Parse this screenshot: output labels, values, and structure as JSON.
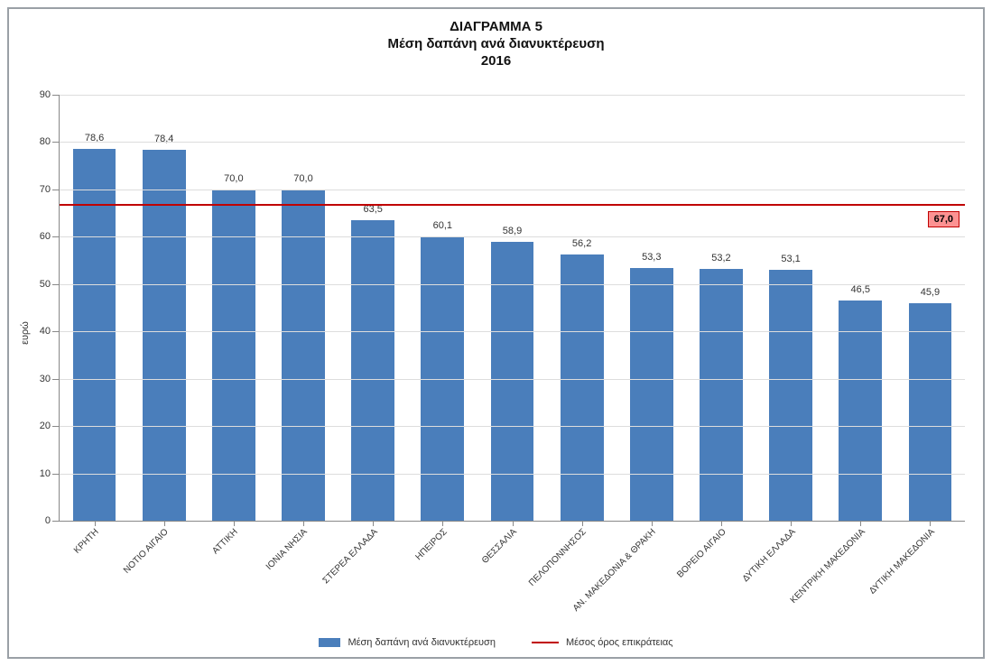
{
  "chart": {
    "type": "bar_with_reference_line",
    "title_lines": [
      "ΔΙΑΓΡΑΜΜΑ 5",
      "Μέση δαπάνη ανά διανυκτέρευση",
      "2016"
    ],
    "title_fontsize": 15,
    "ylabel": "ευρώ",
    "ylim": [
      0,
      90
    ],
    "ytick_step": 10,
    "yticks": [
      0,
      10,
      20,
      30,
      40,
      50,
      60,
      70,
      80,
      90
    ],
    "categories": [
      "ΚΡΗΤΗ",
      "ΝΟΤΙΟ ΑΙΓΑΙΟ",
      "ΑΤΤΙΚΗ",
      "ΙΟΝΙΑ ΝΗΣΙΑ",
      "ΣΤΕΡΕΑ ΕΛΛΑΔΑ",
      "ΗΠΕΙΡΟΣ",
      "ΘΕΣΣΑΛΙΑ",
      "ΠΕΛΟΠΟΝΝΗΣΟΣ",
      "ΑΝ. ΜΑΚΕΔΟΝΙΑ & ΘΡΑΚΗ",
      "ΒΟΡΕΙΟ ΑΙΓΑΙΟ",
      "ΔΥΤΙΚΗ ΕΛΛΑΔΑ",
      "ΚΕΝΤΡΙΚΗ ΜΑΚΕΔΟΝΙΑ",
      "ΔΥΤΙΚΗ ΜΑΚΕΔΟΝΙΑ"
    ],
    "values": [
      78.6,
      78.4,
      70.0,
      70.0,
      63.5,
      60.1,
      58.9,
      56.2,
      53.3,
      53.2,
      53.1,
      46.5,
      45.9
    ],
    "value_labels": [
      "78,6",
      "78,4",
      "70,0",
      "70,0",
      "63,5",
      "60,1",
      "58,9",
      "56,2",
      "53,3",
      "53,2",
      "53,1",
      "46,5",
      "45,9"
    ],
    "bar_color": "#4a7ebb",
    "bar_width_ratio": 0.62,
    "grid_color": "#dddddd",
    "axis_color": "#888888",
    "background_color": "#ffffff",
    "label_fontsize": 11,
    "tick_fontsize": 11,
    "xlabel_fontsize": 10,
    "xlabel_rotation": -45,
    "reference": {
      "value": 67.0,
      "label": "67,0",
      "line_color": "#c00000",
      "line_width": 2,
      "badge_bg": "#fc9292",
      "badge_border": "#c00000"
    },
    "legend": {
      "bar_label": "Μέση δαπάνη ανά διανυκτέρευση",
      "line_label": "Μέσος όρος επικράτειας"
    },
    "frame_border_color": "#9aa0a6"
  }
}
